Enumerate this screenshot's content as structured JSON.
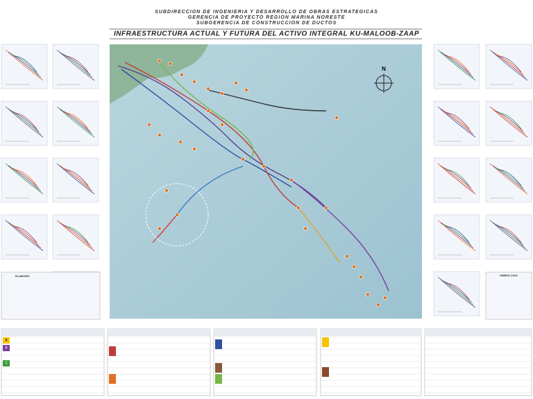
{
  "header": {
    "lines": [
      "SUBDIRECCION DE INGENIERIA Y DESARROLLO DE OBRAS ESTRATEGICAS",
      "GERENCIA DE PROYECTO REGION MARINA NORESTE",
      "SUBGERENCIA DE CONSTRUCCION DE DUCTOS"
    ],
    "title": "INFRAESTRUCTURA ACTUAL Y FUTURA DEL ACTIVO INTEGRAL KU-MALOOB-ZAAP"
  },
  "map": {
    "north": "N"
  },
  "left_panel": {
    "credits_title": "ELABORÓ:"
  },
  "right_panel": {
    "legend_title": "SIMBOLOGIA"
  },
  "tables": {
    "groups": [
      "A",
      "B",
      "C"
    ]
  }
}
